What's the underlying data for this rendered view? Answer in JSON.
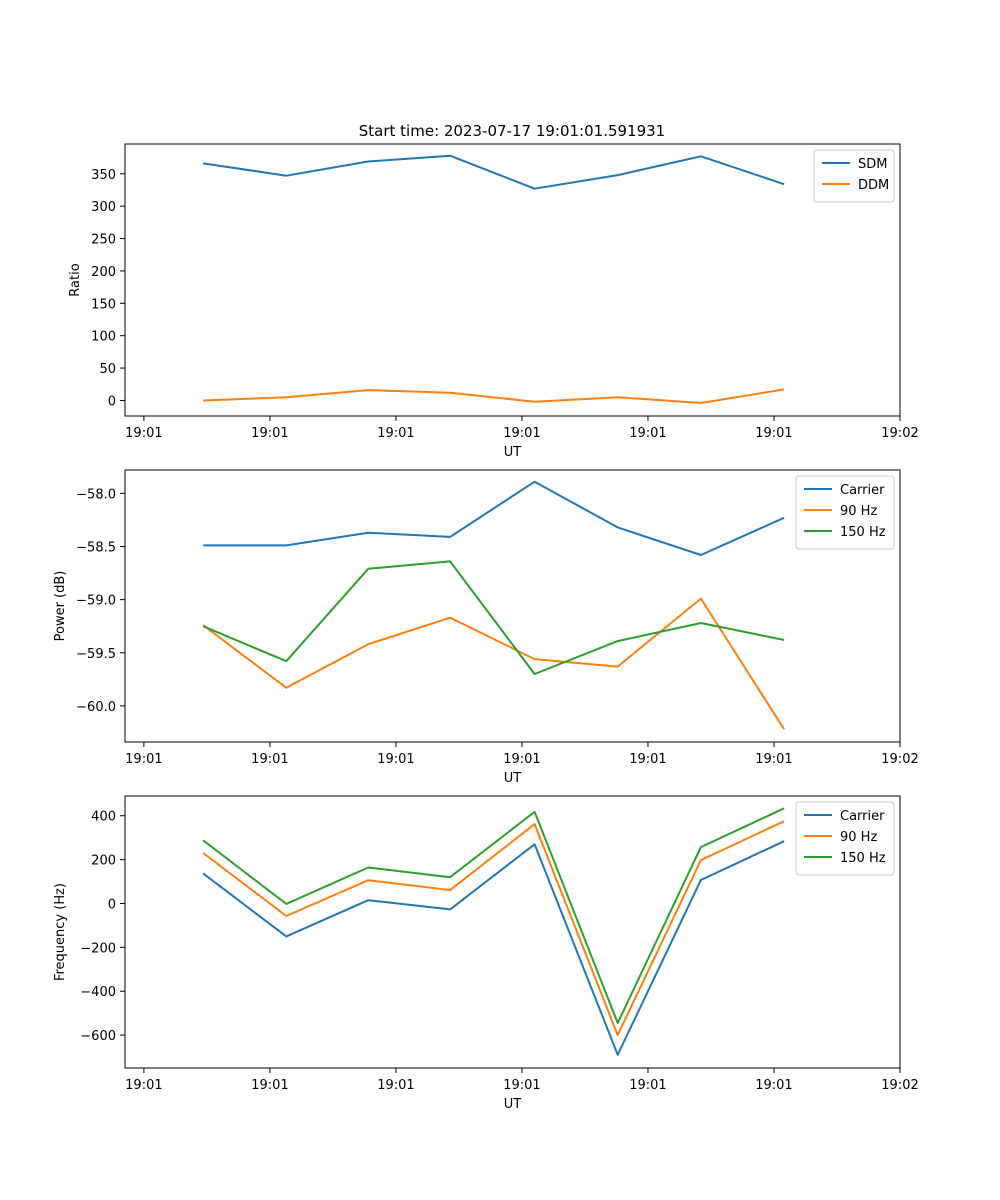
{
  "figure_title": "Start time: 2023-07-17 19:01:01.591931",
  "chart_data": [
    {
      "type": "line",
      "title": "Start time: 2023-07-17 19:01:01.591931",
      "xlabel": "UT",
      "ylabel": "Ratio",
      "x_tick_labels": [
        "19:01",
        "19:01",
        "19:01",
        "19:01",
        "19:01",
        "19:01",
        "19:02"
      ],
      "x": [
        0.47,
        1.13,
        1.78,
        2.43,
        3.1,
        3.76,
        4.42,
        5.08
      ],
      "xlim": [
        -0.15,
        6.0
      ],
      "ylim": [
        -24,
        396
      ],
      "y_ticks": [
        0,
        50,
        100,
        150,
        200,
        250,
        300,
        350
      ],
      "y_tick_labels": [
        "0",
        "50",
        "100",
        "150",
        "200",
        "250",
        "300",
        "350"
      ],
      "legend_position": "top-right",
      "series": [
        {
          "name": "SDM",
          "color": "#1f77b4",
          "values": [
            366,
            347,
            369,
            378,
            327,
            348,
            377,
            334
          ]
        },
        {
          "name": "DDM",
          "color": "#ff7f0e",
          "values": [
            0,
            5,
            16,
            12,
            -2,
            5,
            -4,
            17
          ]
        }
      ]
    },
    {
      "type": "line",
      "xlabel": "UT",
      "ylabel": "Power (dB)",
      "x_tick_labels": [
        "19:01",
        "19:01",
        "19:01",
        "19:01",
        "19:01",
        "19:01",
        "19:02"
      ],
      "x": [
        0.47,
        1.13,
        1.78,
        2.43,
        3.1,
        3.76,
        4.42,
        5.08
      ],
      "xlim": [
        -0.15,
        6.0
      ],
      "ylim": [
        -60.34,
        -57.78
      ],
      "y_ticks": [
        -60.0,
        -59.5,
        -59.0,
        -58.5,
        -58.0
      ],
      "y_tick_labels": [
        "−60.0",
        "−59.5",
        "−59.0",
        "−58.5",
        "−58.0"
      ],
      "legend_position": "top-right",
      "series": [
        {
          "name": "Carrier",
          "color": "#1f77b4",
          "values": [
            -58.49,
            -58.49,
            -58.37,
            -58.41,
            -57.89,
            -58.32,
            -58.58,
            -58.23
          ]
        },
        {
          "name": "90 Hz",
          "color": "#ff7f0e",
          "values": [
            -59.24,
            -59.83,
            -59.42,
            -59.17,
            -59.56,
            -59.63,
            -58.99,
            -60.22
          ]
        },
        {
          "name": "150 Hz",
          "color": "#2ca02c",
          "values": [
            -59.25,
            -59.58,
            -58.71,
            -58.64,
            -59.7,
            -59.39,
            -59.22,
            -59.38
          ]
        }
      ]
    },
    {
      "type": "line",
      "xlabel": "UT",
      "ylabel": "Frequency (Hz)",
      "x_tick_labels": [
        "19:01",
        "19:01",
        "19:01",
        "19:01",
        "19:01",
        "19:01",
        "19:02"
      ],
      "x": [
        0.47,
        1.13,
        1.78,
        2.43,
        3.1,
        3.76,
        4.42,
        5.08
      ],
      "xlim": [
        -0.15,
        6.0
      ],
      "ylim": [
        -750,
        490
      ],
      "y_ticks": [
        -600,
        -400,
        -200,
        0,
        200,
        400
      ],
      "y_tick_labels": [
        "−600",
        "−400",
        "−200",
        "0",
        "200",
        "400"
      ],
      "legend_position": "top-right",
      "series": [
        {
          "name": "Carrier",
          "color": "#1f77b4",
          "values": [
            137,
            -150,
            15,
            -27,
            270,
            -690,
            107,
            284
          ]
        },
        {
          "name": "90 Hz",
          "color": "#ff7f0e",
          "values": [
            230,
            -57,
            106,
            61,
            362,
            -600,
            198,
            375
          ]
        },
        {
          "name": "150 Hz",
          "color": "#2ca02c",
          "values": [
            288,
            -2,
            164,
            120,
            418,
            -545,
            257,
            434
          ]
        }
      ]
    }
  ]
}
